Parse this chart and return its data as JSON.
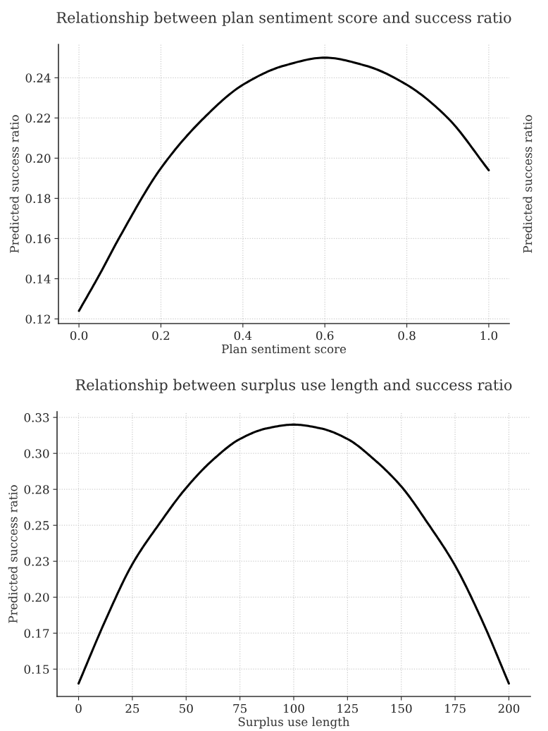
{
  "chart_data": [
    {
      "type": "line",
      "title": "Relationship between plan sentiment score and success ratio",
      "xlabel": "Plan sentiment score",
      "ylabel": "Predicted success ratio",
      "y2label": "Predicted success ratio",
      "x": [
        0.0,
        0.05,
        0.1,
        0.2,
        0.3,
        0.4,
        0.5,
        0.6,
        0.7,
        0.8,
        0.9,
        1.0
      ],
      "series": [
        {
          "color": "#000000",
          "values": [
            0.124,
            0.142,
            0.161,
            0.195,
            0.219,
            0.2365,
            0.246,
            0.25,
            0.246,
            0.2365,
            0.22,
            0.194
          ]
        }
      ],
      "xlim": [
        -0.05,
        1.05
      ],
      "ylim": [
        0.1177,
        0.2566
      ],
      "xticks": [
        {
          "value": 0.0,
          "label": "0.0"
        },
        0.2,
        0.4,
        0.6,
        0.8,
        {
          "value": 1.0,
          "label": "1.0"
        }
      ],
      "yticks": [
        0.12,
        0.14,
        0.16,
        0.18,
        {
          "value": 0.2,
          "label": "0.20"
        },
        0.22,
        0.24
      ],
      "grid": true,
      "marker": "none",
      "line_style": "solid"
    },
    {
      "type": "line",
      "title": "Relationship between surplus use length and success ratio",
      "xlabel": "Surplus use length",
      "ylabel": "Predicted success ratio",
      "x": [
        0,
        12.5,
        25,
        37.5,
        50,
        62.5,
        75,
        87.5,
        100,
        112.5,
        125,
        137.5,
        150,
        162.5,
        175,
        187.5,
        200
      ],
      "series": [
        {
          "color": "#000000",
          "values": [
            0.14,
            0.184,
            0.223,
            0.251,
            0.276,
            0.2956,
            0.31,
            0.3174,
            0.32,
            0.3174,
            0.31,
            0.2956,
            0.277,
            0.251,
            0.222,
            0.184,
            0.14
          ]
        }
      ],
      "xlim": [
        -10,
        210
      ],
      "ylim": [
        0.131,
        0.329
      ],
      "xticks": [
        0,
        25,
        50,
        75,
        100,
        125,
        150,
        175,
        200
      ],
      "yticks": [
        {
          "value": 0.15,
          "label": "0.15"
        },
        {
          "value": 0.175,
          "label": "0.17"
        },
        {
          "value": 0.2,
          "label": "0.20"
        },
        {
          "value": 0.225,
          "label": "0.23"
        },
        {
          "value": 0.25,
          "label": "0.25"
        },
        {
          "value": 0.275,
          "label": "0.28"
        },
        {
          "value": 0.3,
          "label": "0.30"
        },
        {
          "value": 0.325,
          "label": "0.33"
        }
      ],
      "grid": true,
      "marker": "none",
      "line_style": "solid"
    }
  ]
}
